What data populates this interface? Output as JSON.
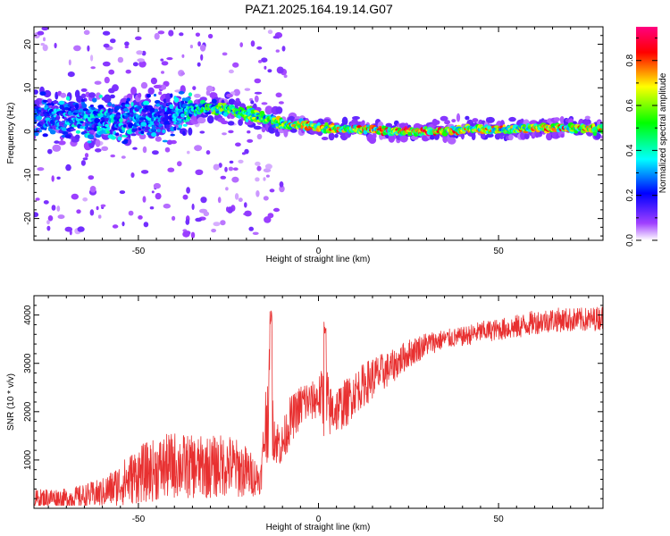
{
  "title": "PAZ1.2025.164.19.14.G07",
  "chart_data": [
    {
      "type": "heatmap",
      "name": "spectrogram",
      "xlabel": "Height of straight line (km)",
      "ylabel": "Frequency (Hz)",
      "xlim": [
        -79,
        79
      ],
      "ylim": [
        -25,
        24
      ],
      "xticks": [
        -50,
        0,
        50
      ],
      "yticks": [
        -20,
        -10,
        0,
        10,
        20
      ],
      "colorbar": {
        "label": "Normalized spectral amplitude",
        "range": [
          0,
          0.95
        ],
        "ticks": [
          0.0,
          0.2,
          0.4,
          0.6,
          0.8
        ],
        "colors": [
          "#ffffff",
          "#a040ff",
          "#0000ff",
          "#00ffff",
          "#00ff00",
          "#ffff00",
          "#ff0000",
          "#ff0080"
        ]
      },
      "ridge": {
        "x": [
          -79,
          -70,
          -60,
          -50,
          -40,
          -35,
          -30,
          -25,
          -20,
          -15,
          -10,
          -5,
          0,
          5,
          10,
          15,
          20,
          25,
          30,
          35,
          40,
          45,
          50,
          55,
          60,
          65,
          70,
          75,
          79
        ],
        "frequency": [
          3,
          3,
          2.5,
          3,
          3.5,
          5,
          5.5,
          5,
          4,
          3,
          1.5,
          1.5,
          1,
          0.5,
          0.5,
          0.5,
          0,
          0,
          0,
          0,
          0.5,
          0.5,
          0.5,
          0.5,
          0.8,
          0.8,
          0.7,
          0.7,
          0.5
        ],
        "amplitude": [
          0.3,
          0.35,
          0.4,
          0.35,
          0.35,
          0.45,
          0.55,
          0.6,
          0.6,
          0.65,
          0.7,
          0.75,
          0.75,
          0.75,
          0.8,
          0.8,
          0.85,
          0.9,
          0.9,
          0.85,
          0.8,
          0.75,
          0.75,
          0.75,
          0.75,
          0.8,
          0.8,
          0.75,
          0.75
        ]
      }
    },
    {
      "type": "line",
      "name": "snr",
      "xlabel": "Height of straight line (km)",
      "ylabel": "SNR (10 * v/v)",
      "xlim": [
        -79,
        79
      ],
      "ylim": [
        0,
        4400
      ],
      "xticks": [
        -50,
        0,
        50
      ],
      "yticks": [
        1000,
        2000,
        3000,
        4000
      ],
      "color": "#e83030",
      "series": [
        {
          "x": [
            -79,
            -75,
            -70,
            -65,
            -60,
            -55,
            -50,
            -45,
            -40,
            -35,
            -30,
            -25,
            -20,
            -16,
            -15,
            -14,
            -13,
            -12,
            -10,
            -8,
            -6,
            -4,
            -2,
            0,
            1,
            2,
            3,
            5,
            8,
            10,
            15,
            20,
            25,
            30,
            35,
            40,
            45,
            50,
            55,
            60,
            65,
            70,
            75,
            79
          ],
          "mean": [
            180,
            220,
            200,
            250,
            320,
            500,
            700,
            800,
            900,
            850,
            850,
            900,
            750,
            600,
            1500,
            2200,
            2100,
            1400,
            1300,
            1800,
            2000,
            2200,
            2200,
            2300,
            2300,
            2100,
            2000,
            2050,
            2200,
            2400,
            2700,
            2900,
            3200,
            3400,
            3500,
            3550,
            3650,
            3700,
            3750,
            3850,
            3900,
            3900,
            3900,
            3950
          ],
          "amp": [
            200,
            200,
            200,
            250,
            300,
            450,
            600,
            650,
            700,
            650,
            650,
            650,
            550,
            300,
            700,
            1200,
            1000,
            500,
            450,
            500,
            450,
            500,
            400,
            450,
            600,
            1200,
            550,
            500,
            500,
            450,
            450,
            350,
            300,
            250,
            200,
            200,
            220,
            220,
            250,
            250,
            250,
            250,
            250,
            250
          ]
        }
      ]
    }
  ]
}
